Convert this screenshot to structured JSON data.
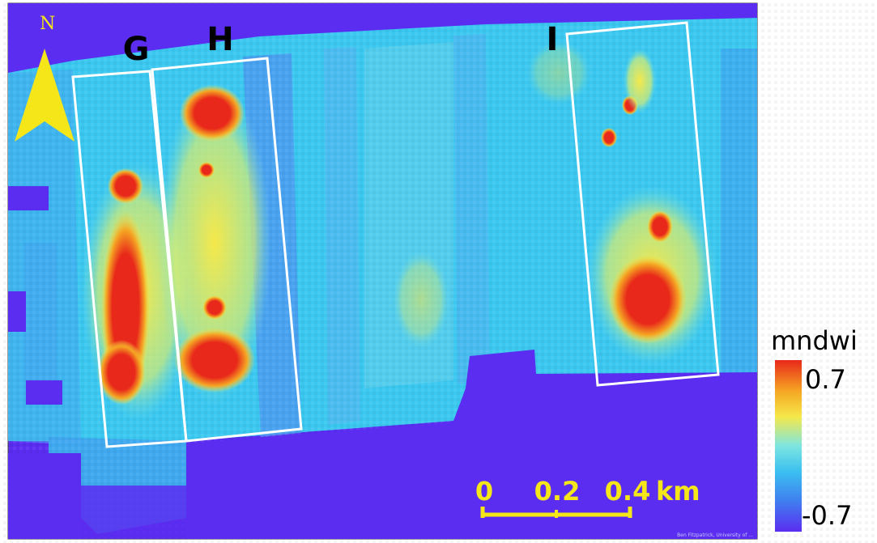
{
  "map": {
    "north_label": "N",
    "plot_labels": [
      "G",
      "H",
      "I"
    ],
    "credit": "Ben Fitzpatrick, University of ..."
  },
  "scalebar": {
    "ticks": [
      "0",
      "0.2",
      "0.4"
    ],
    "unit": "km"
  },
  "legend": {
    "title": "mndwi",
    "max_label": "0.7",
    "min_label": "-0.7",
    "colors": [
      "#e8281a",
      "#f5a623",
      "#f5e84a",
      "#7ee5e0",
      "#3bc0f0",
      "#3f7ff0",
      "#5a2df0"
    ]
  },
  "colors": {
    "background": "#5a2df0",
    "water_low": "#3bc8f0",
    "water_mid": "#f5e84a",
    "water_high": "#e8281a",
    "north_arrow": "#f5e61a",
    "scalebar": "#f5e61a",
    "outline": "#ffffff"
  }
}
